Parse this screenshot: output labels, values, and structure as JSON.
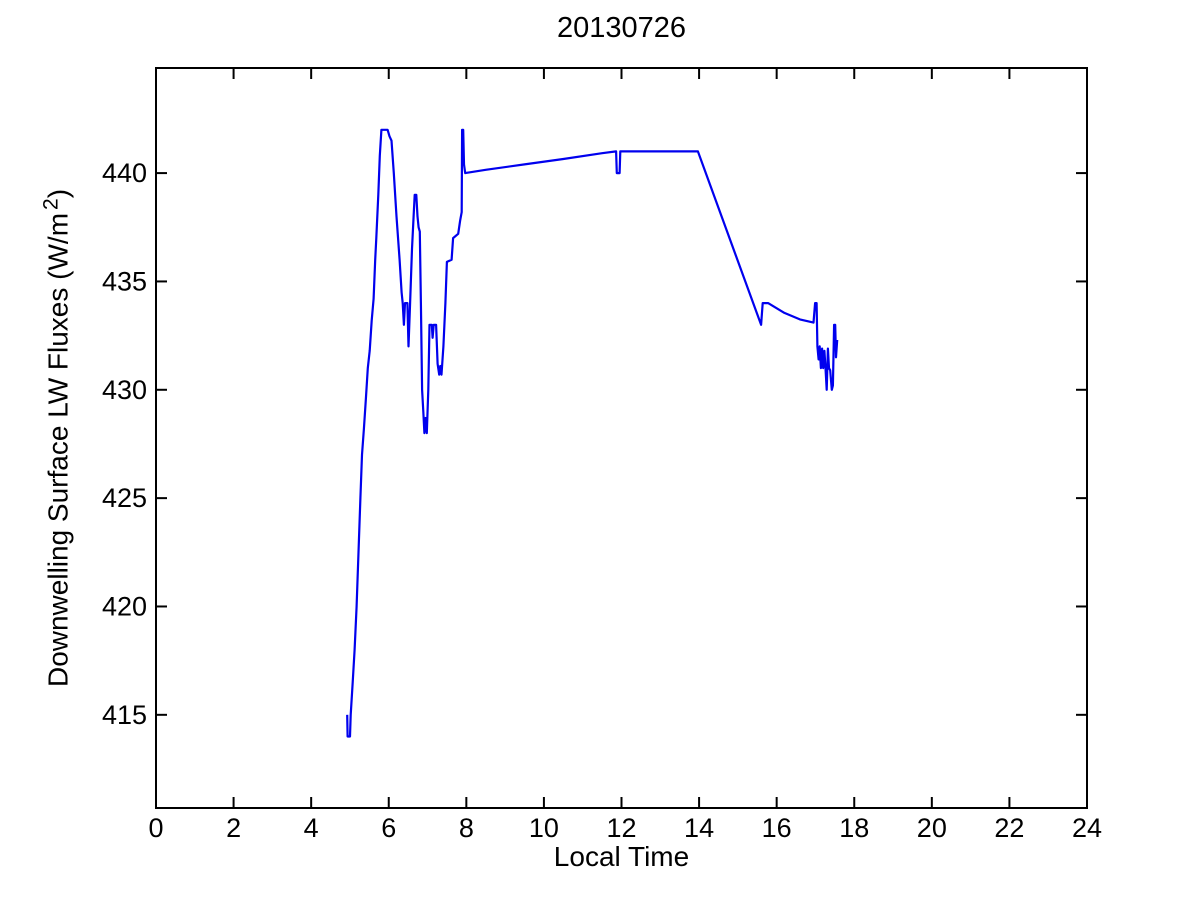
{
  "figure": {
    "title": "20130726",
    "xlabel": "Local Time",
    "ylabel_prefix": "Downwelling Surface LW Fluxes (W/m",
    "ylabel_sup": "2",
    "ylabel_suffix": ")"
  },
  "chart_data": {
    "type": "line",
    "title": "20130726",
    "xlabel": "Local Time",
    "ylabel": "Downwelling Surface LW Fluxes (W/m^2)",
    "xlim": [
      0,
      24
    ],
    "ylim": [
      410.7,
      444.85
    ],
    "xticks": [
      0,
      2,
      4,
      6,
      8,
      10,
      12,
      14,
      16,
      18,
      20,
      22,
      24
    ],
    "yticks": [
      415,
      420,
      425,
      430,
      435,
      440
    ],
    "grid": false,
    "legend": null,
    "line_color": "#0000EE",
    "line_width": 2.2,
    "axis_color": "#000000",
    "series": [
      {
        "name": "downwelling-surface-lw-flux",
        "points": [
          [
            4.93,
            415.0
          ],
          [
            4.94,
            414.0
          ],
          [
            5.0,
            414.0
          ],
          [
            5.02,
            415.0
          ],
          [
            5.07,
            416.5
          ],
          [
            5.12,
            418.0
          ],
          [
            5.17,
            420.0
          ],
          [
            5.22,
            422.5
          ],
          [
            5.27,
            425.0
          ],
          [
            5.31,
            427.0
          ],
          [
            5.36,
            428.2
          ],
          [
            5.41,
            429.6
          ],
          [
            5.46,
            431.0
          ],
          [
            5.51,
            431.8
          ],
          [
            5.56,
            433.2
          ],
          [
            5.61,
            434.2
          ],
          [
            5.65,
            436.0
          ],
          [
            5.68,
            437.0
          ],
          [
            5.73,
            439.0
          ],
          [
            5.77,
            440.8
          ],
          [
            5.81,
            442.0
          ],
          [
            5.97,
            442.0
          ],
          [
            6.02,
            441.7
          ],
          [
            6.07,
            441.5
          ],
          [
            6.13,
            440.0
          ],
          [
            6.2,
            438.0
          ],
          [
            6.28,
            436.0
          ],
          [
            6.33,
            434.5
          ],
          [
            6.36,
            434.0
          ],
          [
            6.39,
            433.0
          ],
          [
            6.42,
            434.0
          ],
          [
            6.48,
            434.0
          ],
          [
            6.51,
            432.0
          ],
          [
            6.55,
            434.0
          ],
          [
            6.6,
            436.5
          ],
          [
            6.64,
            438.0
          ],
          [
            6.67,
            439.0
          ],
          [
            6.71,
            439.0
          ],
          [
            6.74,
            438.0
          ],
          [
            6.77,
            437.5
          ],
          [
            6.8,
            437.3
          ],
          [
            6.83,
            434.0
          ],
          [
            6.86,
            430.0
          ],
          [
            6.89,
            429.0
          ],
          [
            6.92,
            428.0
          ],
          [
            6.95,
            428.7
          ],
          [
            6.98,
            428.0
          ],
          [
            7.02,
            430.0
          ],
          [
            7.05,
            433.0
          ],
          [
            7.11,
            433.0
          ],
          [
            7.13,
            432.4
          ],
          [
            7.16,
            433.0
          ],
          [
            7.22,
            433.0
          ],
          [
            7.26,
            431.2
          ],
          [
            7.3,
            430.7
          ],
          [
            7.33,
            431.1
          ],
          [
            7.36,
            430.7
          ],
          [
            7.41,
            432.0
          ],
          [
            7.46,
            434.0
          ],
          [
            7.5,
            435.9
          ],
          [
            7.62,
            436.0
          ],
          [
            7.66,
            437.0
          ],
          [
            7.79,
            437.2
          ],
          [
            7.84,
            437.8
          ],
          [
            7.88,
            438.2
          ],
          [
            7.89,
            442.0
          ],
          [
            7.92,
            442.0
          ],
          [
            7.94,
            440.4
          ],
          [
            7.97,
            440.0
          ],
          [
            8.5,
            440.15
          ],
          [
            9.5,
            440.4
          ],
          [
            10.5,
            440.65
          ],
          [
            11.5,
            440.92
          ],
          [
            11.86,
            441.0
          ],
          [
            11.88,
            440.0
          ],
          [
            11.95,
            440.0
          ],
          [
            11.97,
            441.0
          ],
          [
            13.97,
            441.0
          ],
          [
            15.6,
            433.0
          ],
          [
            15.64,
            434.0
          ],
          [
            15.78,
            434.0
          ],
          [
            16.2,
            433.55
          ],
          [
            16.6,
            433.25
          ],
          [
            16.95,
            433.1
          ],
          [
            16.99,
            434.0
          ],
          [
            17.03,
            434.0
          ],
          [
            17.05,
            432.0
          ],
          [
            17.08,
            431.4
          ],
          [
            17.11,
            432.0
          ],
          [
            17.14,
            431.0
          ],
          [
            17.17,
            431.9
          ],
          [
            17.2,
            431.0
          ],
          [
            17.23,
            431.8
          ],
          [
            17.26,
            431.0
          ],
          [
            17.29,
            430.0
          ],
          [
            17.32,
            431.9
          ],
          [
            17.35,
            431.0
          ],
          [
            17.38,
            430.9
          ],
          [
            17.42,
            430.0
          ],
          [
            17.45,
            430.2
          ],
          [
            17.48,
            433.0
          ],
          [
            17.51,
            433.0
          ],
          [
            17.53,
            431.5
          ],
          [
            17.56,
            432.3
          ]
        ]
      }
    ]
  }
}
